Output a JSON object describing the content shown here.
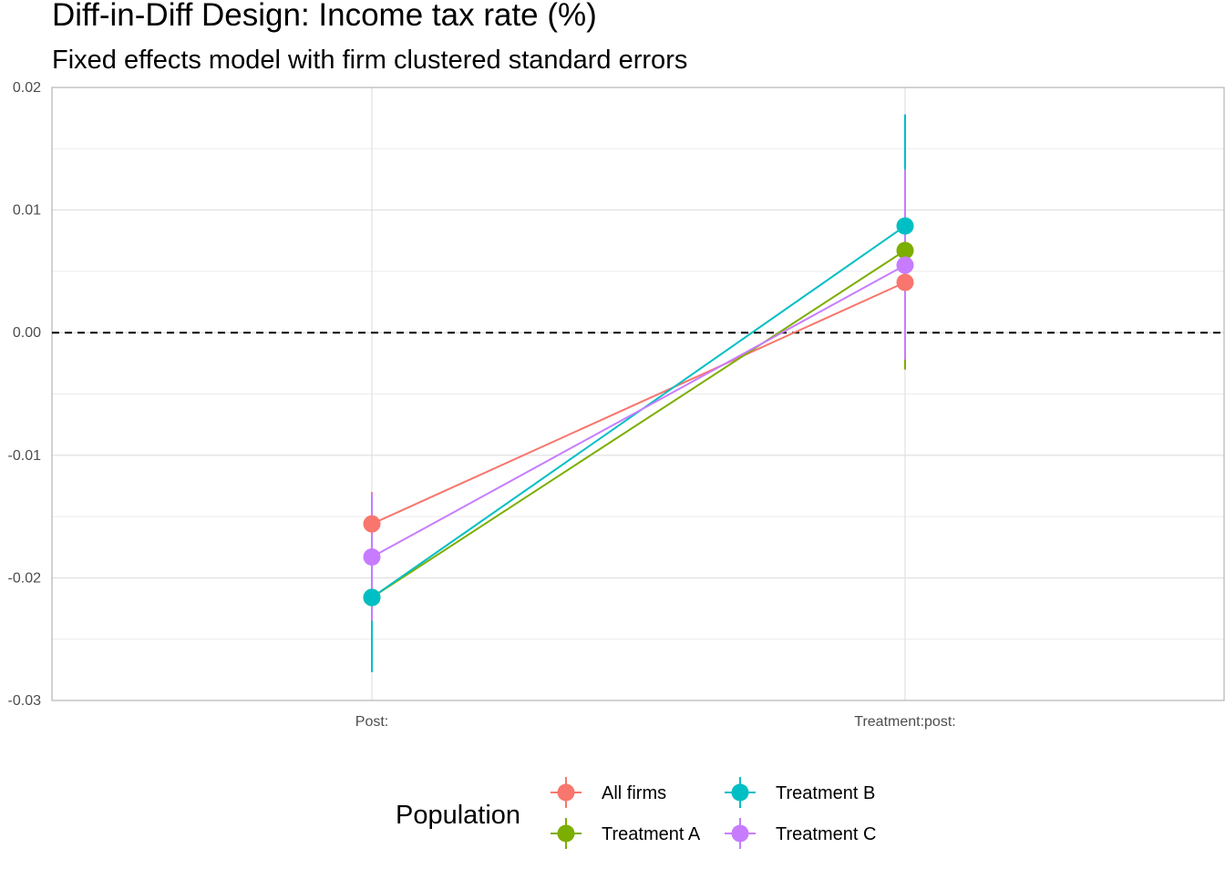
{
  "chart_data": {
    "type": "line",
    "title": "Diff-in-Diff Design: Income tax rate  (%)",
    "subtitle": "Fixed effects model with firm clustered standard errors",
    "xlabel": "",
    "ylabel": "",
    "categories": [
      "Post:",
      "Treatment:post:"
    ],
    "ylim": [
      -0.03,
      0.02
    ],
    "yticks": [
      {
        "value": 0.02,
        "label": "0.02"
      },
      {
        "value": 0.01,
        "label": "0.01"
      },
      {
        "value": 0.0,
        "label": "0.00"
      },
      {
        "value": -0.01,
        "label": "-0.01"
      },
      {
        "value": -0.02,
        "label": "-0.02"
      },
      {
        "value": -0.03,
        "label": "-0.03"
      }
    ],
    "grid": true,
    "reference_line": {
      "y": 0,
      "style": "dashed"
    },
    "legend": {
      "title": "Population",
      "position": "bottom"
    },
    "series": [
      {
        "name": "All firms",
        "color": "#F8766D",
        "values": [
          -0.0156,
          0.0041
        ],
        "ci_low": [
          -0.0181,
          -0.003
        ],
        "ci_high": [
          -0.013,
          0.0113
        ]
      },
      {
        "name": "Treatment A",
        "color": "#7CAE00",
        "values": [
          -0.0216,
          0.0067
        ],
        "ci_low": [
          -0.027,
          -0.003
        ],
        "ci_high": [
          -0.016,
          0.0165
        ]
      },
      {
        "name": "Treatment B",
        "color": "#00BFC4",
        "values": [
          -0.0216,
          0.0087
        ],
        "ci_low": [
          -0.0277,
          -0.0003
        ],
        "ci_high": [
          -0.0155,
          0.0178
        ]
      },
      {
        "name": "Treatment C",
        "color": "#C77CFF",
        "values": [
          -0.0183,
          0.0055
        ],
        "ci_low": [
          -0.0235,
          -0.0022
        ],
        "ci_high": [
          -0.0131,
          0.0133
        ]
      }
    ]
  }
}
